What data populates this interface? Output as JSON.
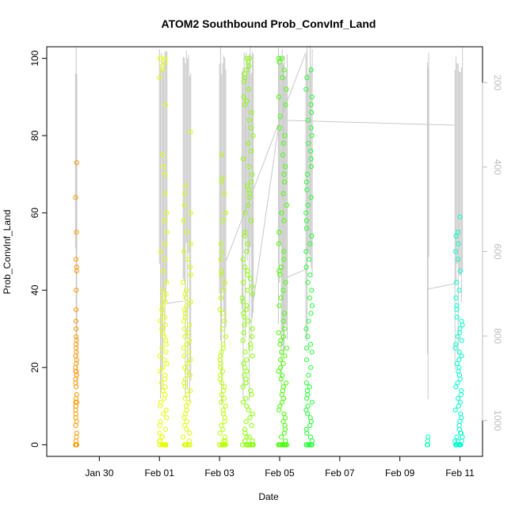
{
  "chart_data": {
    "type": "scatter",
    "title": "ATOM2 Southbound Prob_ConvInf_Land",
    "xlabel": "Date",
    "ylabel": "Prob_ConvInf_Land",
    "xlim": [
      "2024-01-28T06:00",
      "2024-02-11T18:00"
    ],
    "ylim": [
      -3,
      103
    ],
    "x_ticks": [
      {
        "date": "2024-01-30",
        "label": "Jan 30"
      },
      {
        "date": "2024-02-01",
        "label": "Feb 01"
      },
      {
        "date": "2024-02-03",
        "label": "Feb 03"
      },
      {
        "date": "2024-02-05",
        "label": "Feb 05"
      },
      {
        "date": "2024-02-07",
        "label": "Feb 07"
      },
      {
        "date": "2024-02-09",
        "label": "Feb 09"
      },
      {
        "date": "2024-02-11",
        "label": "Feb 11"
      }
    ],
    "y_ticks": [
      0,
      20,
      40,
      60,
      80,
      100
    ],
    "secondary_axis": {
      "position": "right",
      "reversed": true,
      "ticks": [
        200,
        400,
        600,
        800,
        1000
      ],
      "range": [
        115,
        1085
      ],
      "color": "#bdbdbd"
    },
    "grid": false,
    "legend": "none",
    "marker": "open-circle",
    "pass_line_color": "#c8c8c8",
    "clusters": [
      {
        "start": "2024-01-29T05:00",
        "end": "2024-01-29T06:00",
        "color": "#ff9a00",
        "y": [
          0,
          0,
          0,
          0,
          0,
          0,
          0,
          0,
          0,
          0,
          0,
          0,
          0,
          0,
          0,
          0,
          1,
          2,
          3,
          5,
          6,
          7,
          8,
          9,
          10,
          10,
          11,
          11,
          12,
          13,
          15,
          16,
          17,
          18,
          18,
          19,
          19,
          20,
          21,
          22,
          23,
          24,
          25,
          26,
          27,
          28,
          30,
          32,
          35,
          40,
          45,
          46,
          48,
          55,
          64,
          73
        ]
      },
      {
        "start": "2024-02-01T00:00",
        "end": "2024-02-01T06:00",
        "color": "#e6ff00",
        "y": [
          0,
          0,
          0,
          0,
          0,
          0,
          0,
          0,
          0,
          0,
          0,
          1,
          1,
          2,
          2,
          3,
          4,
          5,
          6,
          7,
          8,
          9,
          10,
          11,
          12,
          13,
          14,
          15,
          16,
          17,
          18,
          19,
          20,
          21,
          22,
          23,
          24,
          25,
          26,
          27,
          28,
          29,
          30,
          31,
          32,
          33,
          34,
          35,
          36,
          37,
          38,
          39,
          40,
          42,
          45,
          48,
          50,
          52,
          55,
          58,
          60,
          65,
          70,
          72,
          75,
          88,
          95,
          97,
          98,
          99,
          100,
          100,
          100
        ]
      },
      {
        "start": "2024-02-01T19:00",
        "end": "2024-02-02T01:00",
        "color": "#ddff00",
        "y": [
          0,
          0,
          0,
          0,
          0,
          0,
          0,
          0,
          0,
          1,
          2,
          3,
          4,
          5,
          6,
          7,
          8,
          9,
          10,
          11,
          12,
          13,
          14,
          15,
          16,
          17,
          18,
          19,
          20,
          21,
          22,
          23,
          24,
          25,
          26,
          27,
          28,
          29,
          30,
          31,
          32,
          33,
          34,
          35,
          36,
          37,
          38,
          39,
          40,
          42,
          44,
          46,
          48,
          50,
          52,
          55,
          58,
          60,
          62,
          65,
          67,
          81
        ]
      },
      {
        "start": "2024-02-03T00:00",
        "end": "2024-02-03T05:00",
        "color": "#b8ff00",
        "y": [
          0,
          0,
          0,
          0,
          0,
          0,
          0,
          0,
          0,
          0,
          1,
          1,
          2,
          3,
          4,
          5,
          6,
          7,
          8,
          9,
          10,
          11,
          12,
          13,
          14,
          15,
          16,
          17,
          18,
          19,
          20,
          21,
          22,
          23,
          24,
          25,
          26,
          28,
          30,
          32,
          34,
          35,
          38,
          40,
          42,
          44,
          45,
          48,
          50,
          52,
          58,
          60,
          65,
          68,
          69,
          75
        ]
      },
      {
        "start": "2024-02-03T18:00",
        "end": "2024-02-04T03:00",
        "color": "#88ff00",
        "y": [
          0,
          0,
          0,
          0,
          0,
          0,
          0,
          0,
          0,
          0,
          0,
          0,
          1,
          1,
          2,
          2,
          3,
          4,
          5,
          6,
          7,
          8,
          9,
          10,
          11,
          12,
          13,
          14,
          15,
          16,
          17,
          18,
          19,
          20,
          21,
          22,
          23,
          24,
          25,
          26,
          27,
          28,
          29,
          30,
          31,
          32,
          33,
          34,
          35,
          36,
          37,
          38,
          39,
          40,
          41,
          42,
          43,
          44,
          45,
          46,
          48,
          50,
          52,
          54,
          55,
          58,
          60,
          62,
          64,
          65,
          66,
          67,
          68,
          70,
          72,
          74,
          76,
          78,
          80,
          82,
          84,
          86,
          88,
          89,
          90,
          92,
          94,
          95,
          96,
          97,
          98,
          99,
          100,
          100
        ]
      },
      {
        "start": "2024-02-04T23:00",
        "end": "2024-02-05T06:00",
        "color": "#44ff00",
        "y": [
          0,
          0,
          0,
          0,
          0,
          0,
          0,
          0,
          0,
          0,
          1,
          2,
          3,
          4,
          5,
          6,
          7,
          8,
          9,
          10,
          11,
          12,
          13,
          14,
          15,
          16,
          17,
          18,
          19,
          20,
          21,
          22,
          23,
          24,
          25,
          26,
          27,
          28,
          29,
          30,
          32,
          34,
          36,
          38,
          40,
          42,
          44,
          45,
          46,
          48,
          50,
          52,
          55,
          58,
          60,
          62,
          65,
          68,
          70,
          72,
          75,
          78,
          80,
          82,
          85,
          88,
          90,
          92,
          95,
          97,
          99,
          100,
          100
        ]
      },
      {
        "start": "2024-02-05T21:00",
        "end": "2024-02-06T02:00",
        "color": "#22ff33",
        "y": [
          0,
          0,
          0,
          0,
          0,
          0,
          0,
          0,
          0,
          1,
          2,
          3,
          4,
          5,
          6,
          7,
          8,
          9,
          10,
          11,
          12,
          13,
          14,
          15,
          16,
          18,
          20,
          22,
          24,
          25,
          26,
          28,
          30,
          32,
          34,
          36,
          38,
          40,
          42,
          44,
          46,
          48,
          50,
          52,
          54,
          56,
          58,
          60,
          62,
          64,
          66,
          68,
          70,
          72,
          74,
          76,
          78,
          80,
          82,
          84,
          86,
          88,
          90,
          92,
          95,
          97
        ]
      },
      {
        "start": "2024-02-09T22:00",
        "end": "2024-02-09T23:00",
        "color": "#00ffaa",
        "y": [
          0,
          0,
          0,
          1,
          2
        ]
      },
      {
        "start": "2024-02-10T20:00",
        "end": "2024-02-11T02:00",
        "color": "#00ffcc",
        "y": [
          0,
          0,
          0,
          0,
          0,
          0,
          0,
          0,
          0,
          0,
          0,
          0,
          1,
          1,
          1,
          2,
          2,
          3,
          3,
          4,
          5,
          6,
          7,
          8,
          9,
          10,
          11,
          12,
          13,
          14,
          15,
          16,
          17,
          18,
          19,
          20,
          21,
          22,
          23,
          24,
          25,
          26,
          27,
          28,
          29,
          30,
          31,
          32,
          33,
          35,
          36,
          38,
          40,
          42,
          45,
          48,
          50,
          52,
          54,
          55,
          59
        ]
      }
    ]
  }
}
